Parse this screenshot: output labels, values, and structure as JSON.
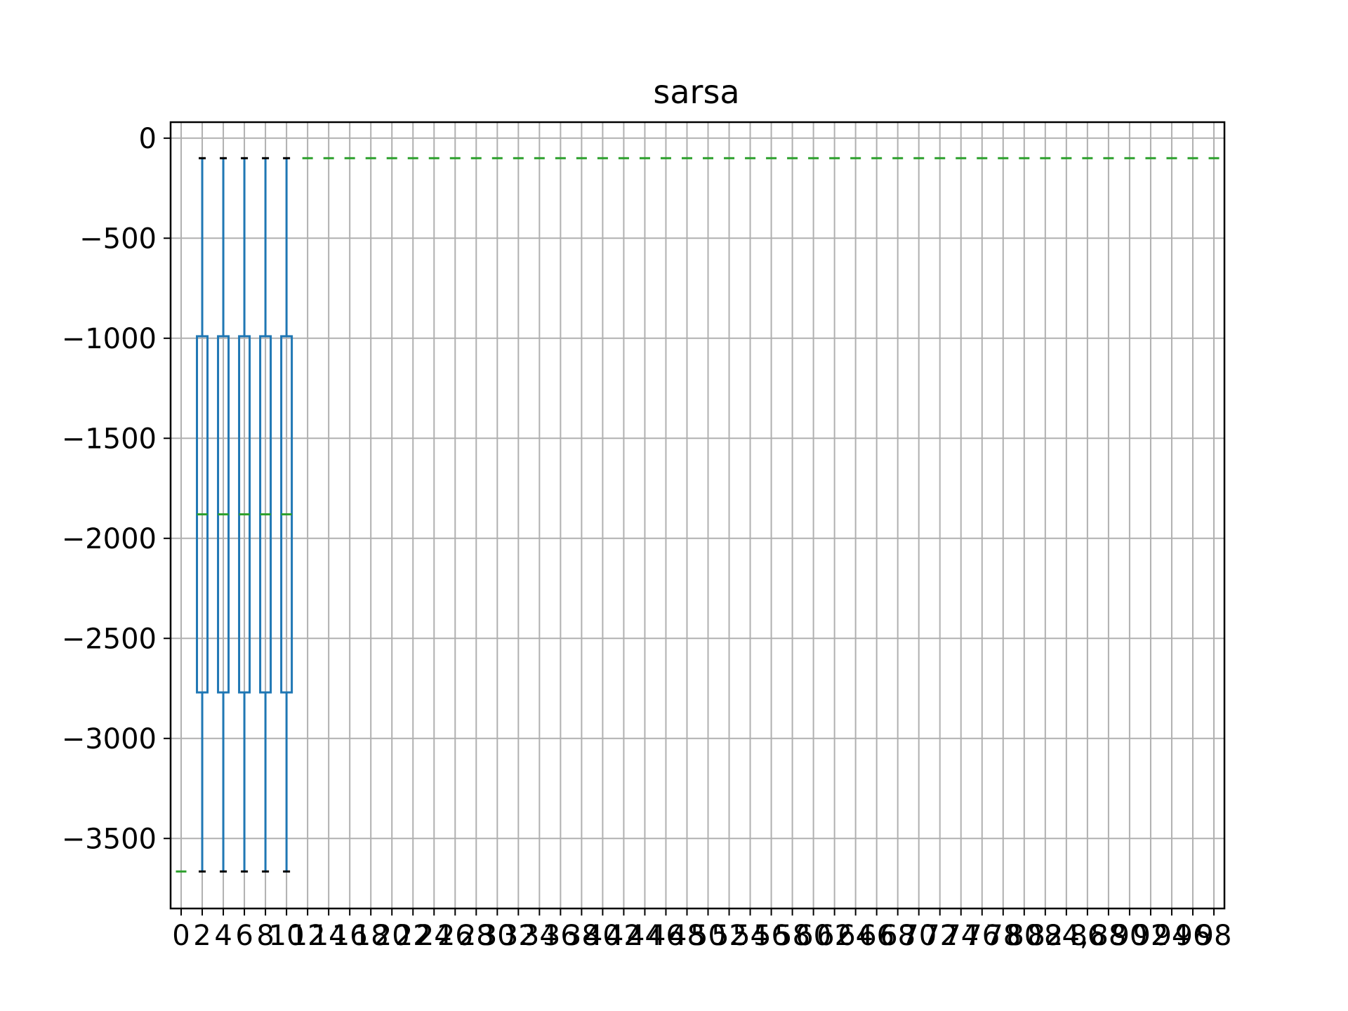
{
  "chart_data": {
    "type": "box",
    "title": "sarsa",
    "xlabel": "",
    "ylabel": "",
    "ylim": [
      -3850,
      80
    ],
    "yticks": [
      0,
      -500,
      -1000,
      -1500,
      -2000,
      -2500,
      -3000,
      -3500
    ],
    "ytick_labels": [
      "0",
      "−500",
      "−1000",
      "−1500",
      "−2000",
      "−2500",
      "−3000",
      "−3500"
    ],
    "x_positions": [
      0,
      2,
      4,
      6,
      8,
      10,
      12,
      14,
      16,
      18,
      20,
      22,
      24,
      26,
      28,
      30,
      32,
      34,
      36,
      38,
      40,
      42,
      44,
      46,
      48,
      50,
      52,
      54,
      56,
      58,
      60,
      62,
      64,
      66,
      68,
      70,
      72,
      74,
      76,
      78,
      80,
      82,
      84,
      86,
      88,
      90,
      92,
      94,
      96,
      98
    ],
    "xtick_labels": [
      "0",
      "2",
      "4",
      "6",
      "8",
      "10",
      "12",
      "14",
      "16",
      "18",
      "20",
      "22",
      "24",
      "26",
      "28",
      "30",
      "32",
      "34",
      "36",
      "38",
      "40",
      "42",
      "44",
      "46",
      "48",
      "50",
      "52",
      "54",
      "56",
      "58",
      "60",
      "62",
      "64",
      "66",
      "68",
      "70",
      "72",
      "74",
      "76",
      "78",
      "80",
      "82",
      "84,",
      "86",
      "88",
      "90",
      "92",
      "94",
      "96",
      "98"
    ],
    "xlim": [
      -1,
      99
    ],
    "grid": true,
    "colors": {
      "box": "#1f77b4",
      "median": "#2ca02c",
      "cap": "#000000",
      "grid": "#b0b0b0"
    },
    "boxes": [
      {
        "x": 0,
        "whislo": -3665,
        "q1": -3665,
        "median": -3665,
        "q3": -3665,
        "whishi": -3665
      },
      {
        "x": 2,
        "whislo": -3665,
        "q1": -2770,
        "median": -1880,
        "q3": -990,
        "whishi": -100
      },
      {
        "x": 4,
        "whislo": -3665,
        "q1": -2770,
        "median": -1880,
        "q3": -990,
        "whishi": -100
      },
      {
        "x": 6,
        "whislo": -3665,
        "q1": -2770,
        "median": -1880,
        "q3": -990,
        "whishi": -100
      },
      {
        "x": 8,
        "whislo": -3665,
        "q1": -2770,
        "median": -1880,
        "q3": -990,
        "whishi": -100
      },
      {
        "x": 10,
        "whislo": -3665,
        "q1": -2770,
        "median": -1880,
        "q3": -990,
        "whishi": -100
      }
    ],
    "flat_median_value": -100,
    "flat_median_from_x": 12,
    "flat_median_to_x": 98
  }
}
